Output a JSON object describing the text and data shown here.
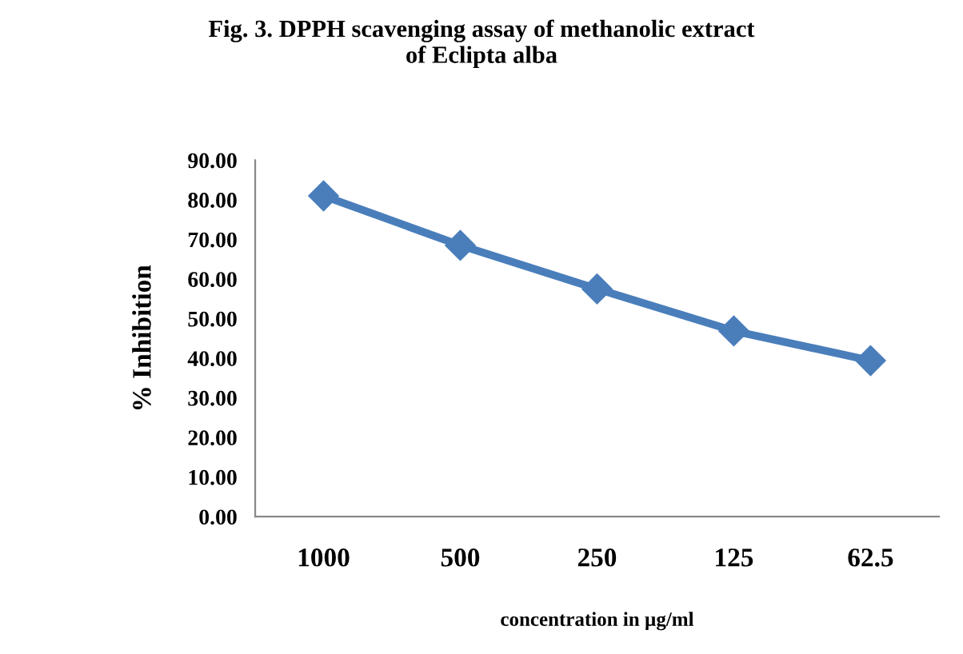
{
  "chart_data": {
    "type": "line",
    "title": "Fig. 3. DPPH scavenging assay of methanolic extract\nof Eclipta alba",
    "xlabel": "concentration in µg/ml",
    "ylabel": "% Inhibition",
    "categories": [
      "1000",
      "500",
      "250",
      "125",
      "62.5"
    ],
    "series": [
      {
        "color": "#4a7ebb",
        "values": [
          81.0,
          68.5,
          57.5,
          46.9,
          39.4
        ]
      }
    ],
    "ylim": [
      0,
      90
    ],
    "yticks": [
      {
        "value": 0,
        "label": "0.00"
      },
      {
        "value": 10,
        "label": "10.00"
      },
      {
        "value": 20,
        "label": "20.00"
      },
      {
        "value": 30,
        "label": "30.00"
      },
      {
        "value": 40,
        "label": "40.00"
      },
      {
        "value": 50,
        "label": "50.00"
      },
      {
        "value": 60,
        "label": "60.00"
      },
      {
        "value": 70,
        "label": "70.00"
      },
      {
        "value": 80,
        "label": "80.00"
      },
      {
        "value": 90,
        "label": "90.00"
      }
    ],
    "marker": "diamond",
    "line_style": "solid",
    "grid": false,
    "legend": false
  }
}
